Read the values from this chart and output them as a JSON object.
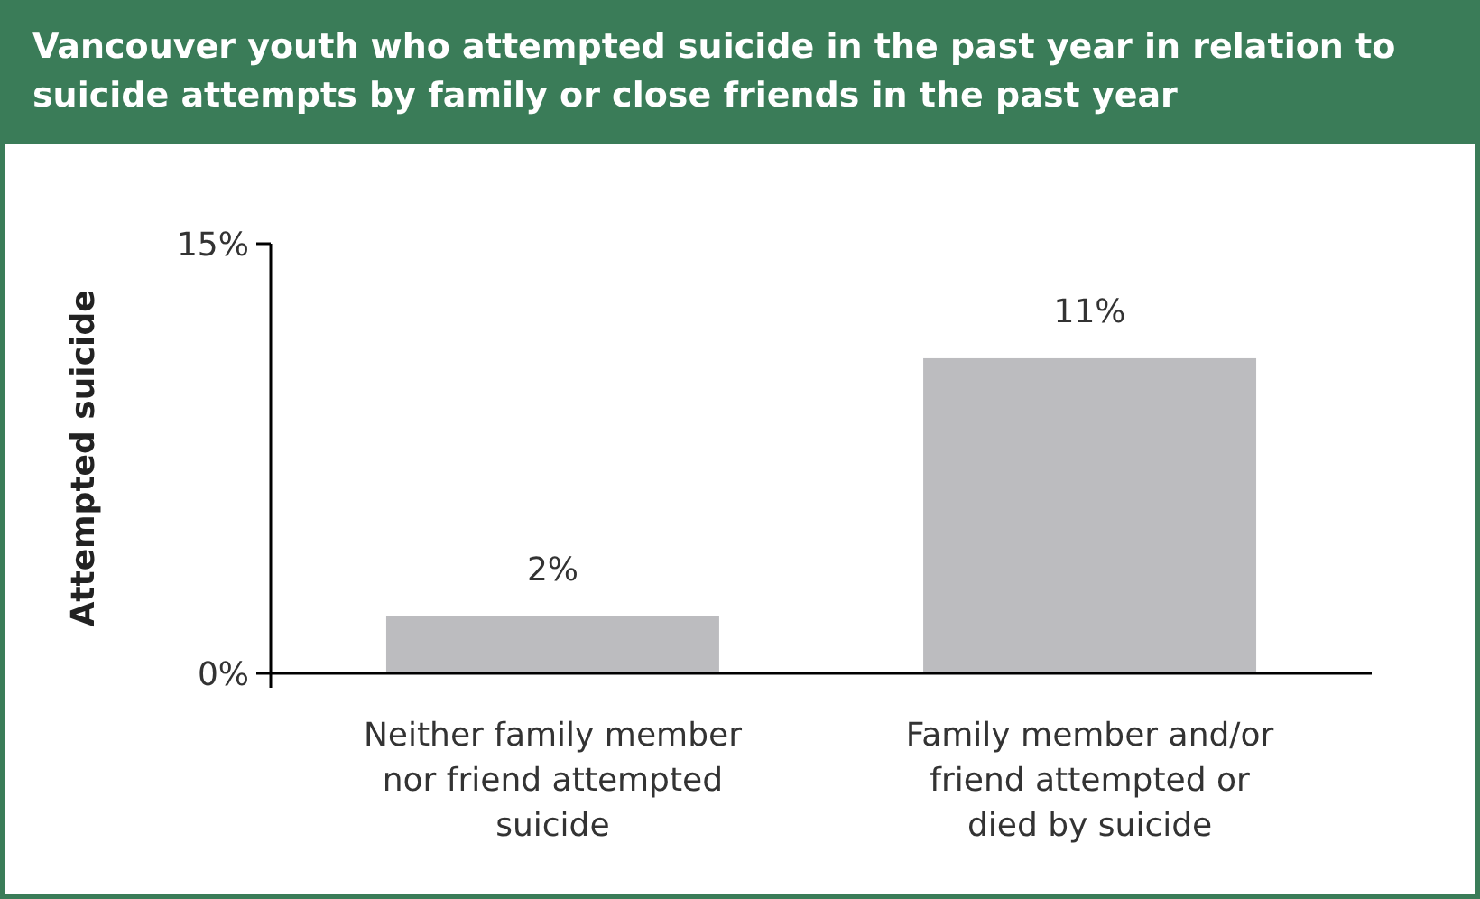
{
  "chart_data": {
    "type": "bar",
    "title": "Vancouver youth who attempted suicide in the past year in relation to suicide attempts by family or close friends in the past year",
    "ylabel": "Attempted suicide",
    "categories": [
      "Neither family member nor friend attempted suicide",
      "Family member and/or friend attempted or died by suicide"
    ],
    "values": [
      2,
      11
    ],
    "value_labels": [
      "2%",
      "11%"
    ],
    "color": "#bcbcbf",
    "ylim": [
      0,
      15
    ],
    "yticks": [
      {
        "value": 0,
        "label": "0%"
      },
      {
        "value": 15,
        "label": "15%"
      }
    ],
    "grid": false
  }
}
